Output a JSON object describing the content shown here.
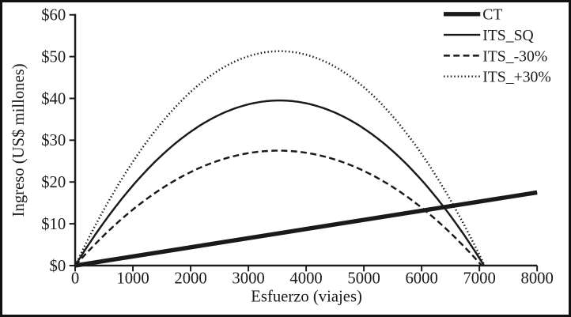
{
  "figure": {
    "background": "#ffffff",
    "border_color": "#111111",
    "ink_color": "#1a1a1a"
  },
  "chart_data": {
    "type": "line",
    "title": "",
    "xlabel": "Esfuerzo (viajes)",
    "ylabel": "Ingreso (US$ millones)",
    "xlim": [
      0,
      8000
    ],
    "ylim": [
      0,
      60
    ],
    "x_ticks": [
      0,
      1000,
      2000,
      3000,
      4000,
      5000,
      6000,
      7000,
      8000
    ],
    "x_tick_labels": [
      "0",
      "1000",
      "2000",
      "3000",
      "4000",
      "5000",
      "6000",
      "7000",
      "8000"
    ],
    "y_ticks": [
      0,
      10,
      20,
      30,
      40,
      50,
      60
    ],
    "y_tick_labels": [
      "$0",
      "$10",
      "$20",
      "$30",
      "$40",
      "$50",
      "$60"
    ],
    "grid": false,
    "legend_position": "top-right",
    "series": [
      {
        "name": "CT",
        "style": "solid",
        "weight": "thick",
        "model": "linear",
        "points": [
          [
            0,
            0
          ],
          [
            8000,
            17.5
          ]
        ]
      },
      {
        "name": "ITS_SQ",
        "style": "solid",
        "weight": "normal",
        "model": "parabola",
        "zeros": [
          0,
          7080
        ],
        "peak_x": 3540,
        "peak_y": 39.5
      },
      {
        "name": "ITS_-30%",
        "style": "dashed",
        "weight": "normal",
        "model": "parabola",
        "zeros": [
          0,
          7040
        ],
        "peak_x": 3520,
        "peak_y": 27.5
      },
      {
        "name": "ITS_+30%",
        "style": "dotted",
        "weight": "normal",
        "model": "parabola",
        "zeros": [
          0,
          7090
        ],
        "peak_x": 3545,
        "peak_y": 51.3
      }
    ]
  }
}
